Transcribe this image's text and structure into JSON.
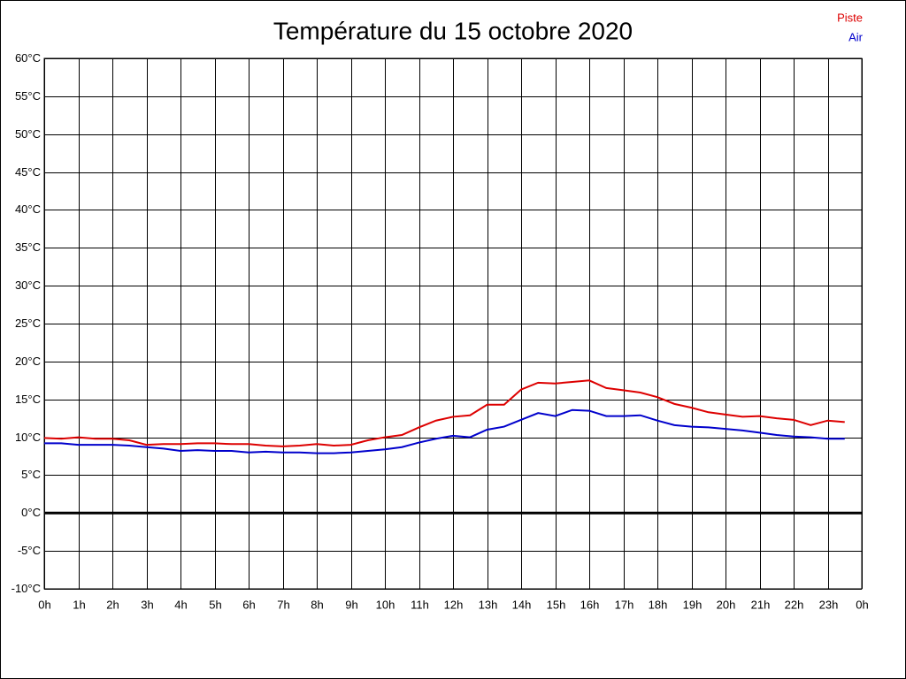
{
  "chart_data": {
    "type": "line",
    "title": "Température du 15 octobre 2020",
    "x": [
      0,
      0.5,
      1,
      1.5,
      2,
      2.5,
      3,
      3.5,
      4,
      4.5,
      5,
      5.5,
      6,
      6.5,
      7,
      7.5,
      8,
      8.5,
      9,
      9.5,
      10,
      10.5,
      11,
      11.5,
      12,
      12.5,
      13,
      13.5,
      14,
      14.5,
      15,
      15.5,
      16,
      16.5,
      17,
      17.5,
      18,
      18.5,
      19,
      19.5,
      20,
      20.5,
      21,
      21.5,
      22,
      22.5,
      23,
      23.5
    ],
    "series": [
      {
        "name": "Piste",
        "color": "#dd0000",
        "values": [
          9.9,
          9.8,
          10.0,
          9.8,
          9.8,
          9.6,
          9.0,
          9.1,
          9.1,
          9.2,
          9.2,
          9.1,
          9.1,
          8.9,
          8.8,
          8.9,
          9.1,
          8.9,
          9.0,
          9.6,
          10.0,
          10.3,
          11.3,
          12.2,
          12.7,
          12.9,
          14.3,
          14.3,
          16.3,
          17.2,
          17.1,
          17.3,
          17.5,
          16.5,
          16.2,
          15.9,
          15.3,
          14.4,
          13.9,
          13.3,
          13.0,
          12.7,
          12.8,
          12.5,
          12.3,
          11.6,
          12.2,
          12.0
        ]
      },
      {
        "name": "Air",
        "color": "#0000cc",
        "values": [
          9.2,
          9.2,
          9.0,
          9.0,
          9.0,
          8.9,
          8.7,
          8.5,
          8.2,
          8.3,
          8.2,
          8.2,
          8.0,
          8.1,
          8.0,
          8.0,
          7.9,
          7.9,
          8.0,
          8.2,
          8.4,
          8.7,
          9.3,
          9.8,
          10.2,
          10.0,
          11.0,
          11.4,
          12.3,
          13.2,
          12.8,
          13.6,
          13.5,
          12.8,
          12.8,
          12.9,
          12.2,
          11.6,
          11.4,
          11.3,
          11.1,
          10.9,
          10.6,
          10.3,
          10.1,
          10.0,
          9.8,
          9.8
        ]
      }
    ],
    "xlim": [
      0,
      24
    ],
    "xticks": [
      {
        "value": 0,
        "label": "0h"
      },
      {
        "value": 1,
        "label": "1h"
      },
      {
        "value": 2,
        "label": "2h"
      },
      {
        "value": 3,
        "label": "3h"
      },
      {
        "value": 4,
        "label": "4h"
      },
      {
        "value": 5,
        "label": "5h"
      },
      {
        "value": 6,
        "label": "6h"
      },
      {
        "value": 7,
        "label": "7h"
      },
      {
        "value": 8,
        "label": "8h"
      },
      {
        "value": 9,
        "label": "9h"
      },
      {
        "value": 10,
        "label": "10h"
      },
      {
        "value": 11,
        "label": "11h"
      },
      {
        "value": 12,
        "label": "12h"
      },
      {
        "value": 13,
        "label": "13h"
      },
      {
        "value": 14,
        "label": "14h"
      },
      {
        "value": 15,
        "label": "15h"
      },
      {
        "value": 16,
        "label": "16h"
      },
      {
        "value": 17,
        "label": "17h"
      },
      {
        "value": 18,
        "label": "18h"
      },
      {
        "value": 19,
        "label": "19h"
      },
      {
        "value": 20,
        "label": "20h"
      },
      {
        "value": 21,
        "label": "21h"
      },
      {
        "value": 22,
        "label": "22h"
      },
      {
        "value": 23,
        "label": "23h"
      },
      {
        "value": 24,
        "label": "0h"
      }
    ],
    "ylim": [
      -10,
      60
    ],
    "yticks": [
      {
        "value": -10,
        "label": "-10°C"
      },
      {
        "value": -5,
        "label": "-5°C"
      },
      {
        "value": 0,
        "label": "0°C"
      },
      {
        "value": 5,
        "label": "5°C"
      },
      {
        "value": 10,
        "label": "10°C"
      },
      {
        "value": 15,
        "label": "15°C"
      },
      {
        "value": 20,
        "label": "20°C"
      },
      {
        "value": 25,
        "label": "25°C"
      },
      {
        "value": 30,
        "label": "30°C"
      },
      {
        "value": 35,
        "label": "35°C"
      },
      {
        "value": 40,
        "label": "40°C"
      },
      {
        "value": 45,
        "label": "45°C"
      },
      {
        "value": 50,
        "label": "50°C"
      },
      {
        "value": 55,
        "label": "55°C"
      },
      {
        "value": 60,
        "label": "60°C"
      }
    ],
    "grid": true,
    "legend": "top-right"
  }
}
